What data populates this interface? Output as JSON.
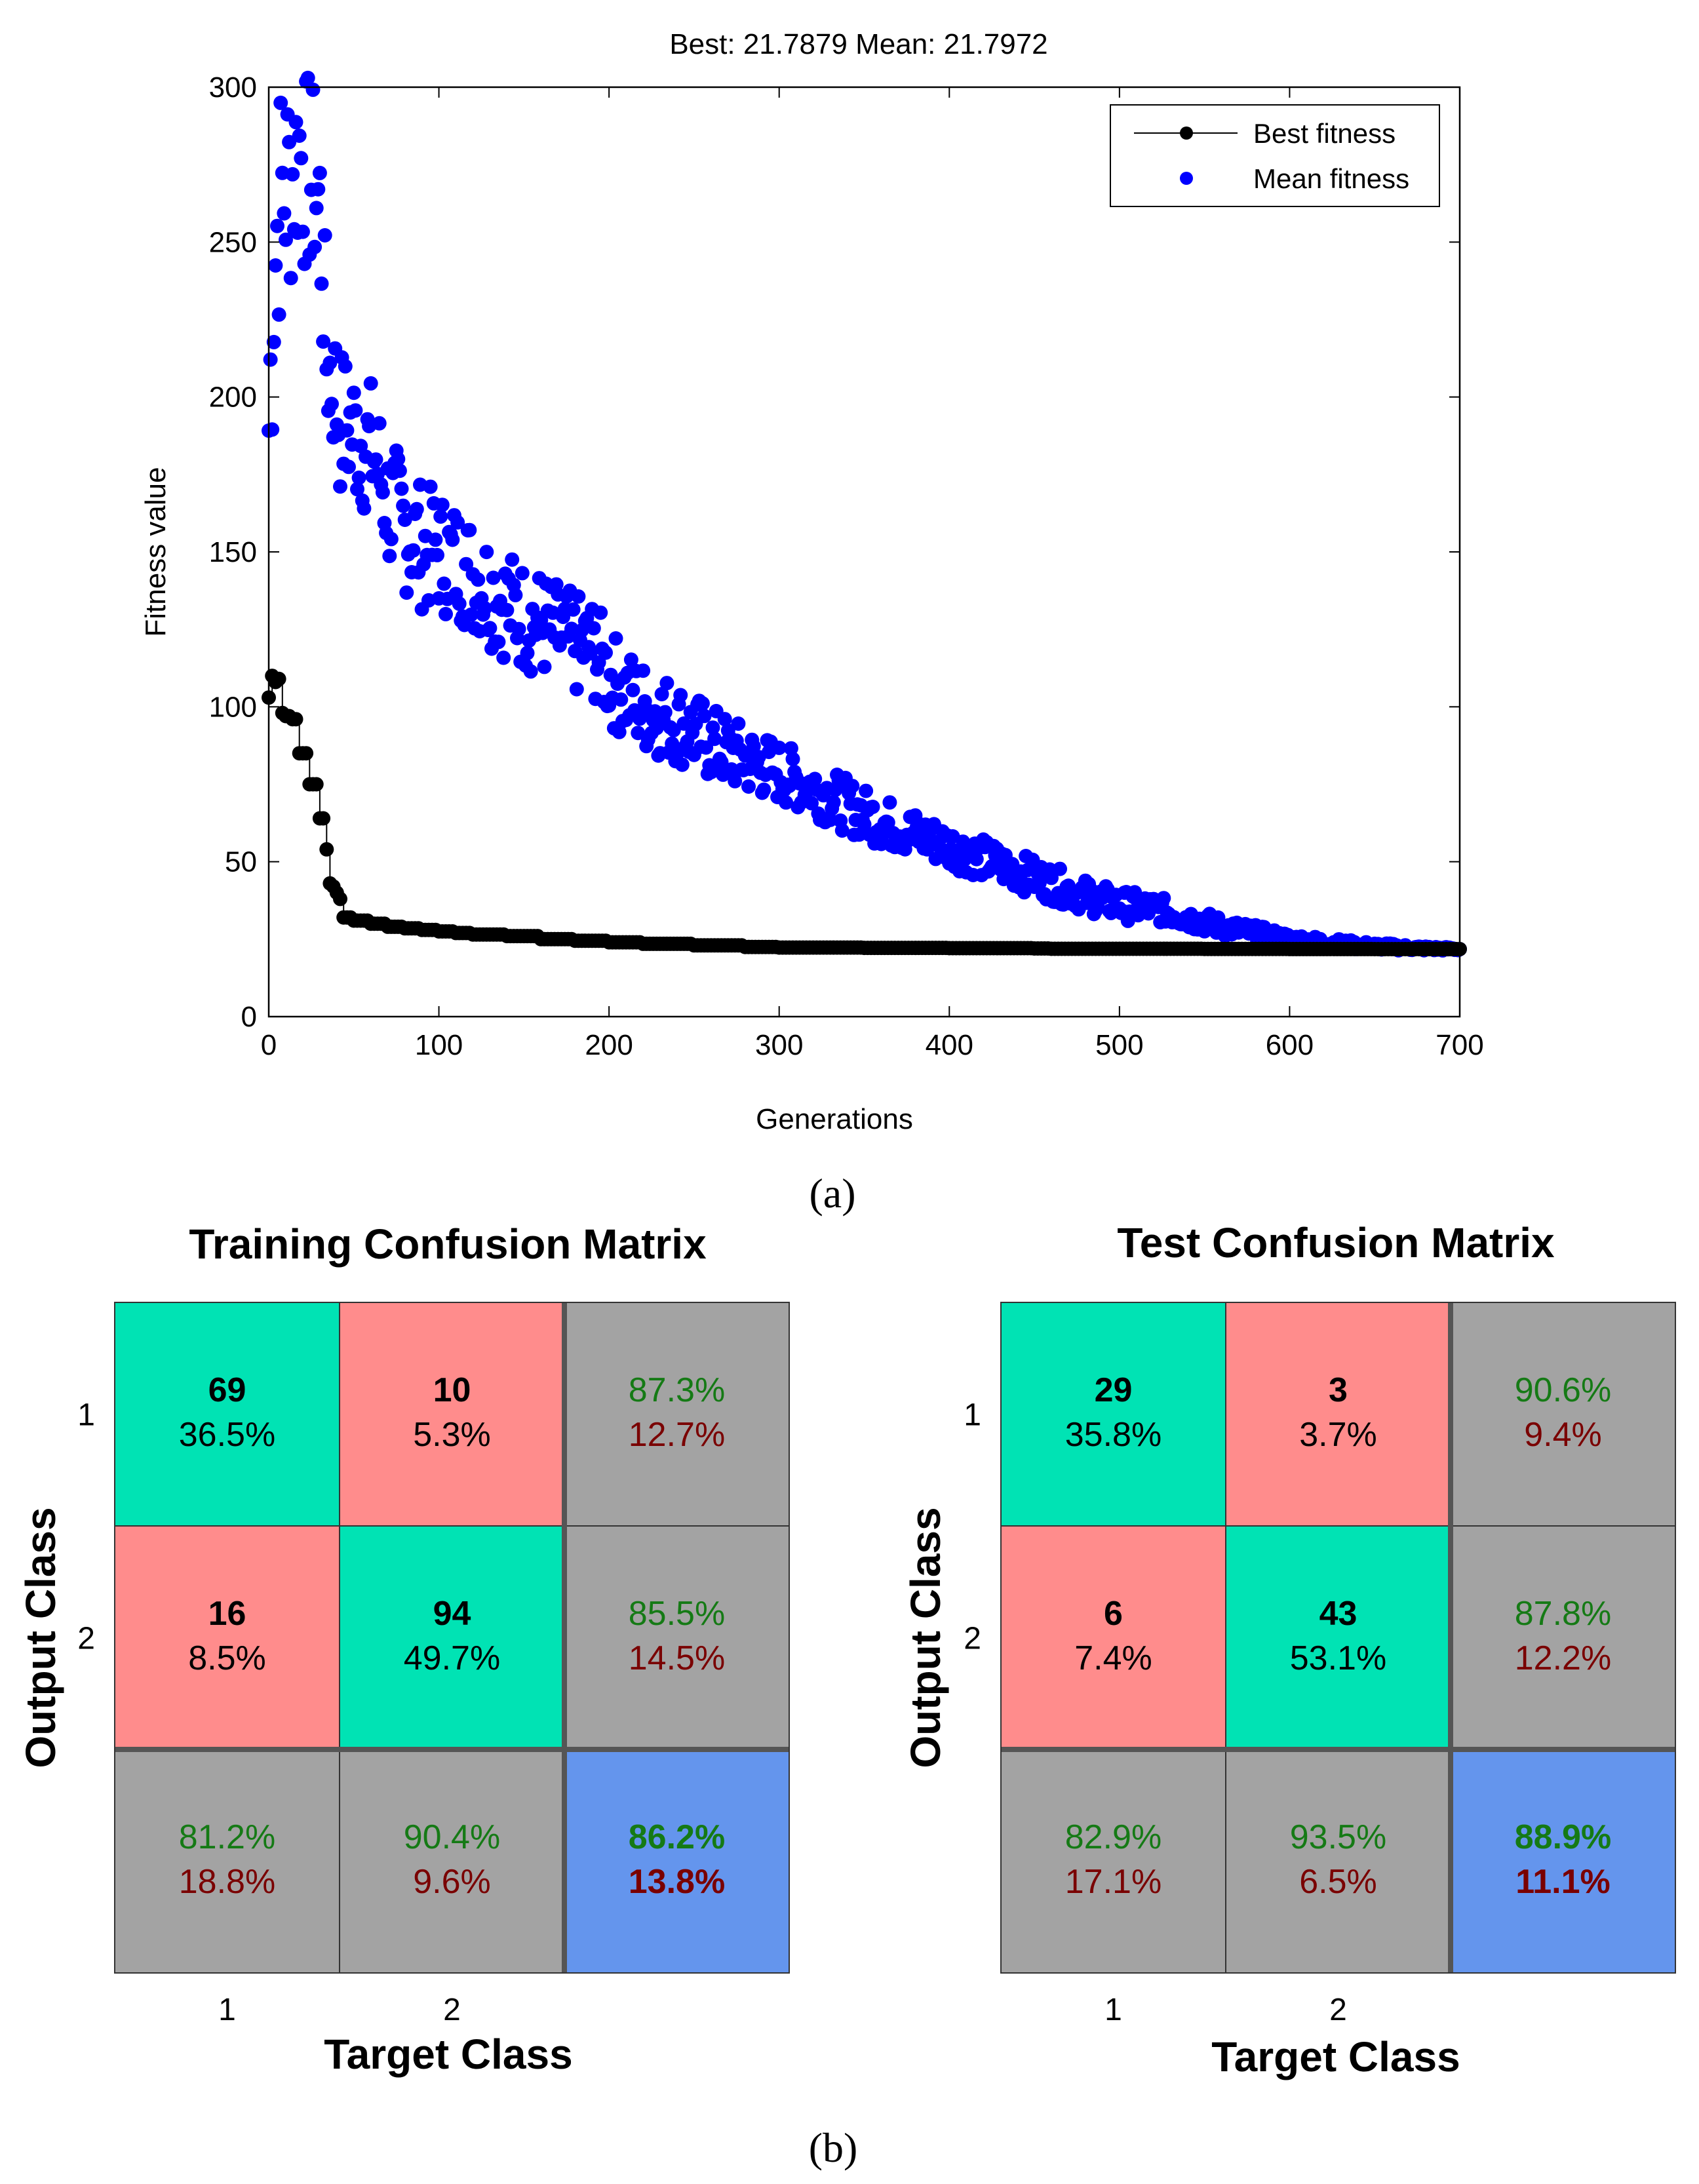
{
  "panel_a": {
    "label": "(a)",
    "chart_data": {
      "type": "scatter",
      "title": "Best: 21.7879 Mean: 21.7972",
      "xlabel": "Generations",
      "ylabel": "Fitness value",
      "xlim": [
        0,
        700
      ],
      "ylim": [
        0,
        300
      ],
      "xticks": [
        "0",
        "100",
        "200",
        "300",
        "400",
        "500",
        "600",
        "700"
      ],
      "yticks": [
        "0",
        "50",
        "100",
        "150",
        "200",
        "250",
        "300"
      ],
      "legend": {
        "placement": "top-right",
        "entries": [
          "Best fitness",
          "Mean fitness"
        ]
      },
      "series": [
        {
          "name": "Best fitness",
          "color": "#000000",
          "style": "line-with-dots",
          "points": [
            [
              0,
              103
            ],
            [
              2,
              110
            ],
            [
              4,
              108
            ],
            [
              6,
              109
            ],
            [
              8,
              98
            ],
            [
              10,
              97
            ],
            [
              12,
              97
            ],
            [
              14,
              96
            ],
            [
              16,
              96
            ],
            [
              18,
              85
            ],
            [
              20,
              85
            ],
            [
              22,
              85
            ],
            [
              24,
              75
            ],
            [
              26,
              75
            ],
            [
              28,
              75
            ],
            [
              30,
              64
            ],
            [
              32,
              64
            ],
            [
              34,
              54
            ],
            [
              36,
              43
            ],
            [
              38,
              42
            ],
            [
              40,
              40
            ],
            [
              42,
              38
            ],
            [
              44,
              32
            ],
            [
              50,
              31
            ],
            [
              60,
              30
            ],
            [
              70,
              29
            ],
            [
              80,
              28.5
            ],
            [
              90,
              28
            ],
            [
              100,
              27.5
            ],
            [
              110,
              27
            ],
            [
              120,
              26.5
            ],
            [
              140,
              26
            ],
            [
              160,
              25
            ],
            [
              180,
              24.5
            ],
            [
              200,
              24
            ],
            [
              220,
              23.5
            ],
            [
              250,
              23
            ],
            [
              280,
              22.5
            ],
            [
              300,
              22.3
            ],
            [
              350,
              22.2
            ],
            [
              400,
              22.1
            ],
            [
              450,
              22
            ],
            [
              460,
              21.9
            ],
            [
              500,
              21.9
            ],
            [
              550,
              21.85
            ],
            [
              600,
              21.82
            ],
            [
              650,
              21.8
            ],
            [
              700,
              21.79
            ]
          ]
        },
        {
          "name": "Mean fitness",
          "color": "#0000ff",
          "style": "dots",
          "curve": [
            [
              0,
              190
            ],
            [
              3,
              240
            ],
            [
              6,
              262
            ],
            [
              10,
              268
            ],
            [
              14,
              272
            ],
            [
              18,
              280
            ],
            [
              22,
              272
            ],
            [
              26,
              270
            ],
            [
              30,
              262
            ],
            [
              34,
              212
            ],
            [
              38,
              205
            ],
            [
              42,
              192
            ],
            [
              48,
              190
            ],
            [
              55,
              186
            ],
            [
              62,
              182
            ],
            [
              70,
              166
            ],
            [
              80,
              158
            ],
            [
              90,
              152
            ],
            [
              100,
              150
            ],
            [
              110,
              147
            ],
            [
              120,
              143
            ],
            [
              130,
              138
            ],
            [
              140,
              133
            ],
            [
              150,
              129
            ],
            [
              160,
              127
            ],
            [
              170,
              123
            ],
            [
              180,
              120
            ],
            [
              190,
              119
            ],
            [
              200,
              110
            ],
            [
              210,
              104
            ],
            [
              220,
              100
            ],
            [
              240,
              95
            ],
            [
              260,
              88
            ],
            [
              280,
              83
            ],
            [
              300,
              79
            ],
            [
              320,
              74
            ],
            [
              340,
              68
            ],
            [
              360,
              63
            ],
            [
              380,
              59
            ],
            [
              400,
              55
            ],
            [
              420,
              51
            ],
            [
              440,
              47
            ],
            [
              460,
              43
            ],
            [
              480,
              39
            ],
            [
              500,
              36
            ],
            [
              520,
              35
            ],
            [
              540,
              32
            ],
            [
              560,
              29
            ],
            [
              580,
              27
            ],
            [
              600,
              25
            ],
            [
              620,
              24
            ],
            [
              640,
              23
            ],
            [
              660,
              22.5
            ],
            [
              680,
              22
            ],
            [
              700,
              21.8
            ]
          ],
          "spread": [
            [
              0,
              45
            ],
            [
              40,
              25
            ],
            [
              100,
              20
            ],
            [
              200,
              16
            ],
            [
              300,
              10
            ],
            [
              400,
              7
            ],
            [
              500,
              5
            ],
            [
              600,
              2
            ],
            [
              700,
              0.5
            ]
          ]
        }
      ]
    }
  },
  "panel_b": {
    "label": "(b)",
    "chart_data": [
      {
        "type": "table",
        "title": "Training Confusion Matrix",
        "xlabel": "Target Class",
        "ylabel": "Output Class",
        "x_tick_labels": [
          "1",
          "2"
        ],
        "y_tick_labels": [
          "1",
          "2"
        ],
        "cells": [
          [
            "69",
            "36.5%",
            "10",
            "5.3%",
            "87.3%",
            "12.7%"
          ],
          [
            "16",
            "8.5%",
            "94",
            "49.7%",
            "85.5%",
            "14.5%"
          ],
          [
            "81.2%",
            "18.8%",
            "90.4%",
            "9.6%",
            "86.2%",
            "13.8%"
          ]
        ],
        "counts": [
          [
            69,
            10
          ],
          [
            16,
            94
          ]
        ],
        "percent_of_total": [
          [
            36.5,
            5.3
          ],
          [
            8.5,
            49.7
          ]
        ],
        "row_summary": [
          [
            87.3,
            12.7
          ],
          [
            85.5,
            14.5
          ]
        ],
        "column_summary": [
          [
            81.2,
            18.8
          ],
          [
            90.4,
            9.6
          ]
        ],
        "overall": [
          86.2,
          13.8
        ]
      },
      {
        "type": "table",
        "title": "Test Confusion Matrix",
        "xlabel": "Target Class",
        "ylabel": "Output Class",
        "x_tick_labels": [
          "1",
          "2"
        ],
        "y_tick_labels": [
          "1",
          "2"
        ],
        "cells": [
          [
            "29",
            "35.8%",
            "3",
            "3.7%",
            "90.6%",
            "9.4%"
          ],
          [
            "6",
            "7.4%",
            "43",
            "53.1%",
            "87.8%",
            "12.2%"
          ],
          [
            "82.9%",
            "17.1%",
            "93.5%",
            "6.5%",
            "88.9%",
            "11.1%"
          ]
        ],
        "counts": [
          [
            29,
            3
          ],
          [
            6,
            43
          ]
        ],
        "percent_of_total": [
          [
            35.8,
            3.7
          ],
          [
            7.4,
            53.1
          ]
        ],
        "row_summary": [
          [
            90.6,
            9.4
          ],
          [
            87.8,
            12.2
          ]
        ],
        "column_summary": [
          [
            82.9,
            17.1
          ],
          [
            93.5,
            6.5
          ]
        ],
        "overall": [
          88.9,
          11.1
        ]
      }
    ],
    "colors": {
      "correct": "#00e3b4",
      "incorrect": "#ff8c8c",
      "summary": "#a3a3a3",
      "overall": "#6495ed",
      "green_text": "#157a15",
      "red_text": "#7a0000"
    }
  }
}
